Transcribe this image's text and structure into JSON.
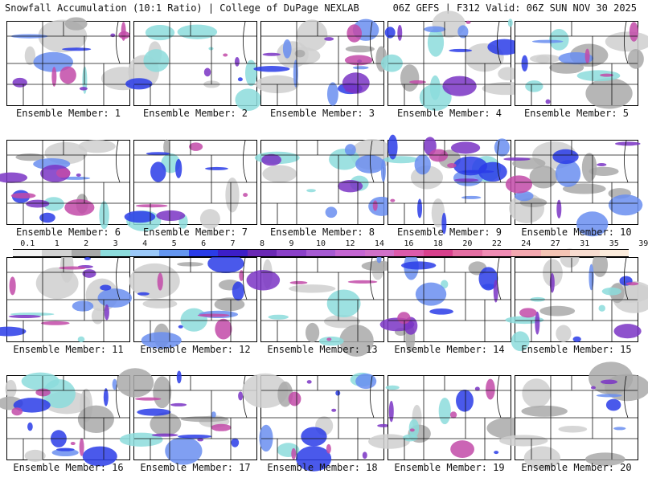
{
  "header": {
    "title_left": "Snowfall Accumulation (10:1 Ratio) | College of DuPage NEXLAB",
    "title_right": "06Z GEFS | F312 Valid: 06Z SUN NOV 30 2025"
  },
  "panels": [
    {
      "label": "Ensemble Member: 1"
    },
    {
      "label": "Ensemble Member: 2"
    },
    {
      "label": "Ensemble Member: 3"
    },
    {
      "label": "Ensemble Member: 4"
    },
    {
      "label": "Ensemble Member: 5"
    },
    {
      "label": "Ensemble Member: 6"
    },
    {
      "label": "Ensemble Member: 7"
    },
    {
      "label": "Ensemble Member: 8"
    },
    {
      "label": "Ensemble Member: 9"
    },
    {
      "label": "Ensemble Member: 10"
    },
    {
      "label": "Ensemble Member: 11"
    },
    {
      "label": "Ensemble Member: 12"
    },
    {
      "label": "Ensemble Member: 13"
    },
    {
      "label": "Ensemble Member: 14"
    },
    {
      "label": "Ensemble Member: 15"
    },
    {
      "label": "Ensemble Member: 16"
    },
    {
      "label": "Ensemble Member: 17"
    },
    {
      "label": "Ensemble Member: 18"
    },
    {
      "label": "Ensemble Member: 19"
    },
    {
      "label": "Ensemble Member: 20"
    }
  ],
  "colorbar": {
    "ticks": [
      "0.1",
      "1",
      "2",
      "3",
      "4",
      "5",
      "6",
      "7",
      "8",
      "9",
      "10",
      "12",
      "14",
      "16",
      "18",
      "20",
      "22",
      "24",
      "27",
      "31",
      "35",
      "39"
    ],
    "colors": [
      "#f4f4f4",
      "#d2d2d2",
      "#a8a8a8",
      "#8cdcdc",
      "#9ac8f8",
      "#6496f0",
      "#2a3ce8",
      "#3c1ec8",
      "#6a28b4",
      "#8a40c8",
      "#a65ad2",
      "#c466d2",
      "#d070c8",
      "#dc5aaa",
      "#d8408c",
      "#e46ea2",
      "#f08cb4",
      "#f4a8b0",
      "#f4c4b4",
      "#f8dcd0",
      "#fcecdc"
    ]
  }
}
